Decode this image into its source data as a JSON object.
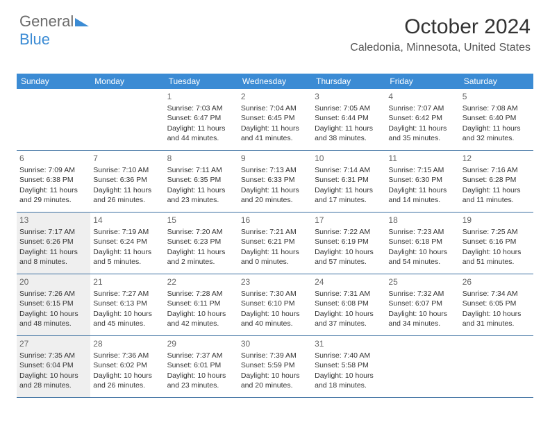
{
  "logo": {
    "text1": "General",
    "text2": "Blue"
  },
  "header": {
    "month": "October 2024",
    "location": "Caledonia, Minnesota, United States"
  },
  "colors": {
    "header_bg": "#3b8bd4",
    "border": "#3b6fa0",
    "shaded": "#efefef",
    "text": "#333333"
  },
  "dow": [
    "Sunday",
    "Monday",
    "Tuesday",
    "Wednesday",
    "Thursday",
    "Friday",
    "Saturday"
  ],
  "weeks": [
    [
      {
        "num": "",
        "sunrise": "",
        "sunset": "",
        "daylight": ""
      },
      {
        "num": "",
        "sunrise": "",
        "sunset": "",
        "daylight": ""
      },
      {
        "num": "1",
        "sunrise": "Sunrise: 7:03 AM",
        "sunset": "Sunset: 6:47 PM",
        "daylight": "Daylight: 11 hours and 44 minutes."
      },
      {
        "num": "2",
        "sunrise": "Sunrise: 7:04 AM",
        "sunset": "Sunset: 6:45 PM",
        "daylight": "Daylight: 11 hours and 41 minutes."
      },
      {
        "num": "3",
        "sunrise": "Sunrise: 7:05 AM",
        "sunset": "Sunset: 6:44 PM",
        "daylight": "Daylight: 11 hours and 38 minutes."
      },
      {
        "num": "4",
        "sunrise": "Sunrise: 7:07 AM",
        "sunset": "Sunset: 6:42 PM",
        "daylight": "Daylight: 11 hours and 35 minutes."
      },
      {
        "num": "5",
        "sunrise": "Sunrise: 7:08 AM",
        "sunset": "Sunset: 6:40 PM",
        "daylight": "Daylight: 11 hours and 32 minutes."
      }
    ],
    [
      {
        "num": "6",
        "sunrise": "Sunrise: 7:09 AM",
        "sunset": "Sunset: 6:38 PM",
        "daylight": "Daylight: 11 hours and 29 minutes."
      },
      {
        "num": "7",
        "sunrise": "Sunrise: 7:10 AM",
        "sunset": "Sunset: 6:36 PM",
        "daylight": "Daylight: 11 hours and 26 minutes."
      },
      {
        "num": "8",
        "sunrise": "Sunrise: 7:11 AM",
        "sunset": "Sunset: 6:35 PM",
        "daylight": "Daylight: 11 hours and 23 minutes."
      },
      {
        "num": "9",
        "sunrise": "Sunrise: 7:13 AM",
        "sunset": "Sunset: 6:33 PM",
        "daylight": "Daylight: 11 hours and 20 minutes."
      },
      {
        "num": "10",
        "sunrise": "Sunrise: 7:14 AM",
        "sunset": "Sunset: 6:31 PM",
        "daylight": "Daylight: 11 hours and 17 minutes."
      },
      {
        "num": "11",
        "sunrise": "Sunrise: 7:15 AM",
        "sunset": "Sunset: 6:30 PM",
        "daylight": "Daylight: 11 hours and 14 minutes."
      },
      {
        "num": "12",
        "sunrise": "Sunrise: 7:16 AM",
        "sunset": "Sunset: 6:28 PM",
        "daylight": "Daylight: 11 hours and 11 minutes."
      }
    ],
    [
      {
        "num": "13",
        "sunrise": "Sunrise: 7:17 AM",
        "sunset": "Sunset: 6:26 PM",
        "daylight": "Daylight: 11 hours and 8 minutes.",
        "shaded": true
      },
      {
        "num": "14",
        "sunrise": "Sunrise: 7:19 AM",
        "sunset": "Sunset: 6:24 PM",
        "daylight": "Daylight: 11 hours and 5 minutes."
      },
      {
        "num": "15",
        "sunrise": "Sunrise: 7:20 AM",
        "sunset": "Sunset: 6:23 PM",
        "daylight": "Daylight: 11 hours and 2 minutes."
      },
      {
        "num": "16",
        "sunrise": "Sunrise: 7:21 AM",
        "sunset": "Sunset: 6:21 PM",
        "daylight": "Daylight: 11 hours and 0 minutes."
      },
      {
        "num": "17",
        "sunrise": "Sunrise: 7:22 AM",
        "sunset": "Sunset: 6:19 PM",
        "daylight": "Daylight: 10 hours and 57 minutes."
      },
      {
        "num": "18",
        "sunrise": "Sunrise: 7:23 AM",
        "sunset": "Sunset: 6:18 PM",
        "daylight": "Daylight: 10 hours and 54 minutes."
      },
      {
        "num": "19",
        "sunrise": "Sunrise: 7:25 AM",
        "sunset": "Sunset: 6:16 PM",
        "daylight": "Daylight: 10 hours and 51 minutes."
      }
    ],
    [
      {
        "num": "20",
        "sunrise": "Sunrise: 7:26 AM",
        "sunset": "Sunset: 6:15 PM",
        "daylight": "Daylight: 10 hours and 48 minutes.",
        "shaded": true
      },
      {
        "num": "21",
        "sunrise": "Sunrise: 7:27 AM",
        "sunset": "Sunset: 6:13 PM",
        "daylight": "Daylight: 10 hours and 45 minutes."
      },
      {
        "num": "22",
        "sunrise": "Sunrise: 7:28 AM",
        "sunset": "Sunset: 6:11 PM",
        "daylight": "Daylight: 10 hours and 42 minutes."
      },
      {
        "num": "23",
        "sunrise": "Sunrise: 7:30 AM",
        "sunset": "Sunset: 6:10 PM",
        "daylight": "Daylight: 10 hours and 40 minutes."
      },
      {
        "num": "24",
        "sunrise": "Sunrise: 7:31 AM",
        "sunset": "Sunset: 6:08 PM",
        "daylight": "Daylight: 10 hours and 37 minutes."
      },
      {
        "num": "25",
        "sunrise": "Sunrise: 7:32 AM",
        "sunset": "Sunset: 6:07 PM",
        "daylight": "Daylight: 10 hours and 34 minutes."
      },
      {
        "num": "26",
        "sunrise": "Sunrise: 7:34 AM",
        "sunset": "Sunset: 6:05 PM",
        "daylight": "Daylight: 10 hours and 31 minutes."
      }
    ],
    [
      {
        "num": "27",
        "sunrise": "Sunrise: 7:35 AM",
        "sunset": "Sunset: 6:04 PM",
        "daylight": "Daylight: 10 hours and 28 minutes.",
        "shaded": true
      },
      {
        "num": "28",
        "sunrise": "Sunrise: 7:36 AM",
        "sunset": "Sunset: 6:02 PM",
        "daylight": "Daylight: 10 hours and 26 minutes."
      },
      {
        "num": "29",
        "sunrise": "Sunrise: 7:37 AM",
        "sunset": "Sunset: 6:01 PM",
        "daylight": "Daylight: 10 hours and 23 minutes."
      },
      {
        "num": "30",
        "sunrise": "Sunrise: 7:39 AM",
        "sunset": "Sunset: 5:59 PM",
        "daylight": "Daylight: 10 hours and 20 minutes."
      },
      {
        "num": "31",
        "sunrise": "Sunrise: 7:40 AM",
        "sunset": "Sunset: 5:58 PM",
        "daylight": "Daylight: 10 hours and 18 minutes."
      },
      {
        "num": "",
        "sunrise": "",
        "sunset": "",
        "daylight": ""
      },
      {
        "num": "",
        "sunrise": "",
        "sunset": "",
        "daylight": ""
      }
    ]
  ]
}
